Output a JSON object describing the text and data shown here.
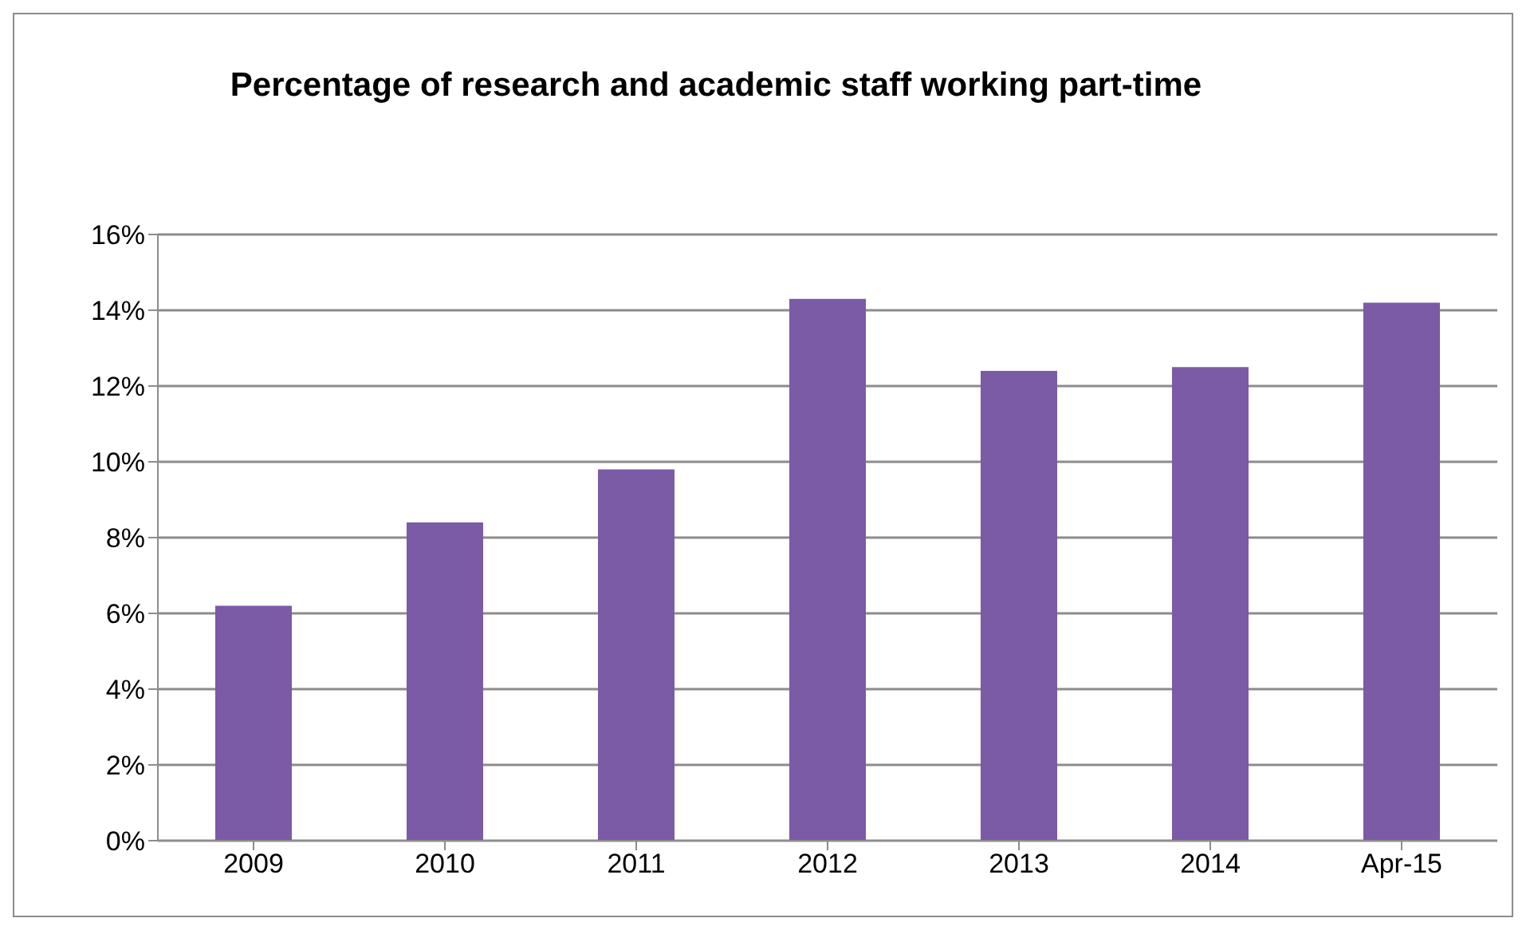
{
  "chart_data": {
    "type": "bar",
    "title": "Percentage of research and academic staff working part-time",
    "categories": [
      "2009",
      "2010",
      "2011",
      "2012",
      "2013",
      "2014",
      "Apr-15"
    ],
    "values": [
      6.2,
      8.4,
      9.8,
      14.3,
      12.4,
      12.5,
      14.2
    ],
    "color": "#7b5aa6",
    "ylim": [
      0,
      16
    ],
    "yticks": [
      {
        "value": 0,
        "label": "0%"
      },
      {
        "value": 2,
        "label": "2%"
      },
      {
        "value": 4,
        "label": "4%"
      },
      {
        "value": 6,
        "label": "6%"
      },
      {
        "value": 8,
        "label": "8%"
      },
      {
        "value": 10,
        "label": "10%"
      },
      {
        "value": 12,
        "label": "12%"
      },
      {
        "value": 14,
        "label": "14%"
      },
      {
        "value": 16,
        "label": "16%"
      }
    ],
    "grid": "y",
    "legend": false
  }
}
